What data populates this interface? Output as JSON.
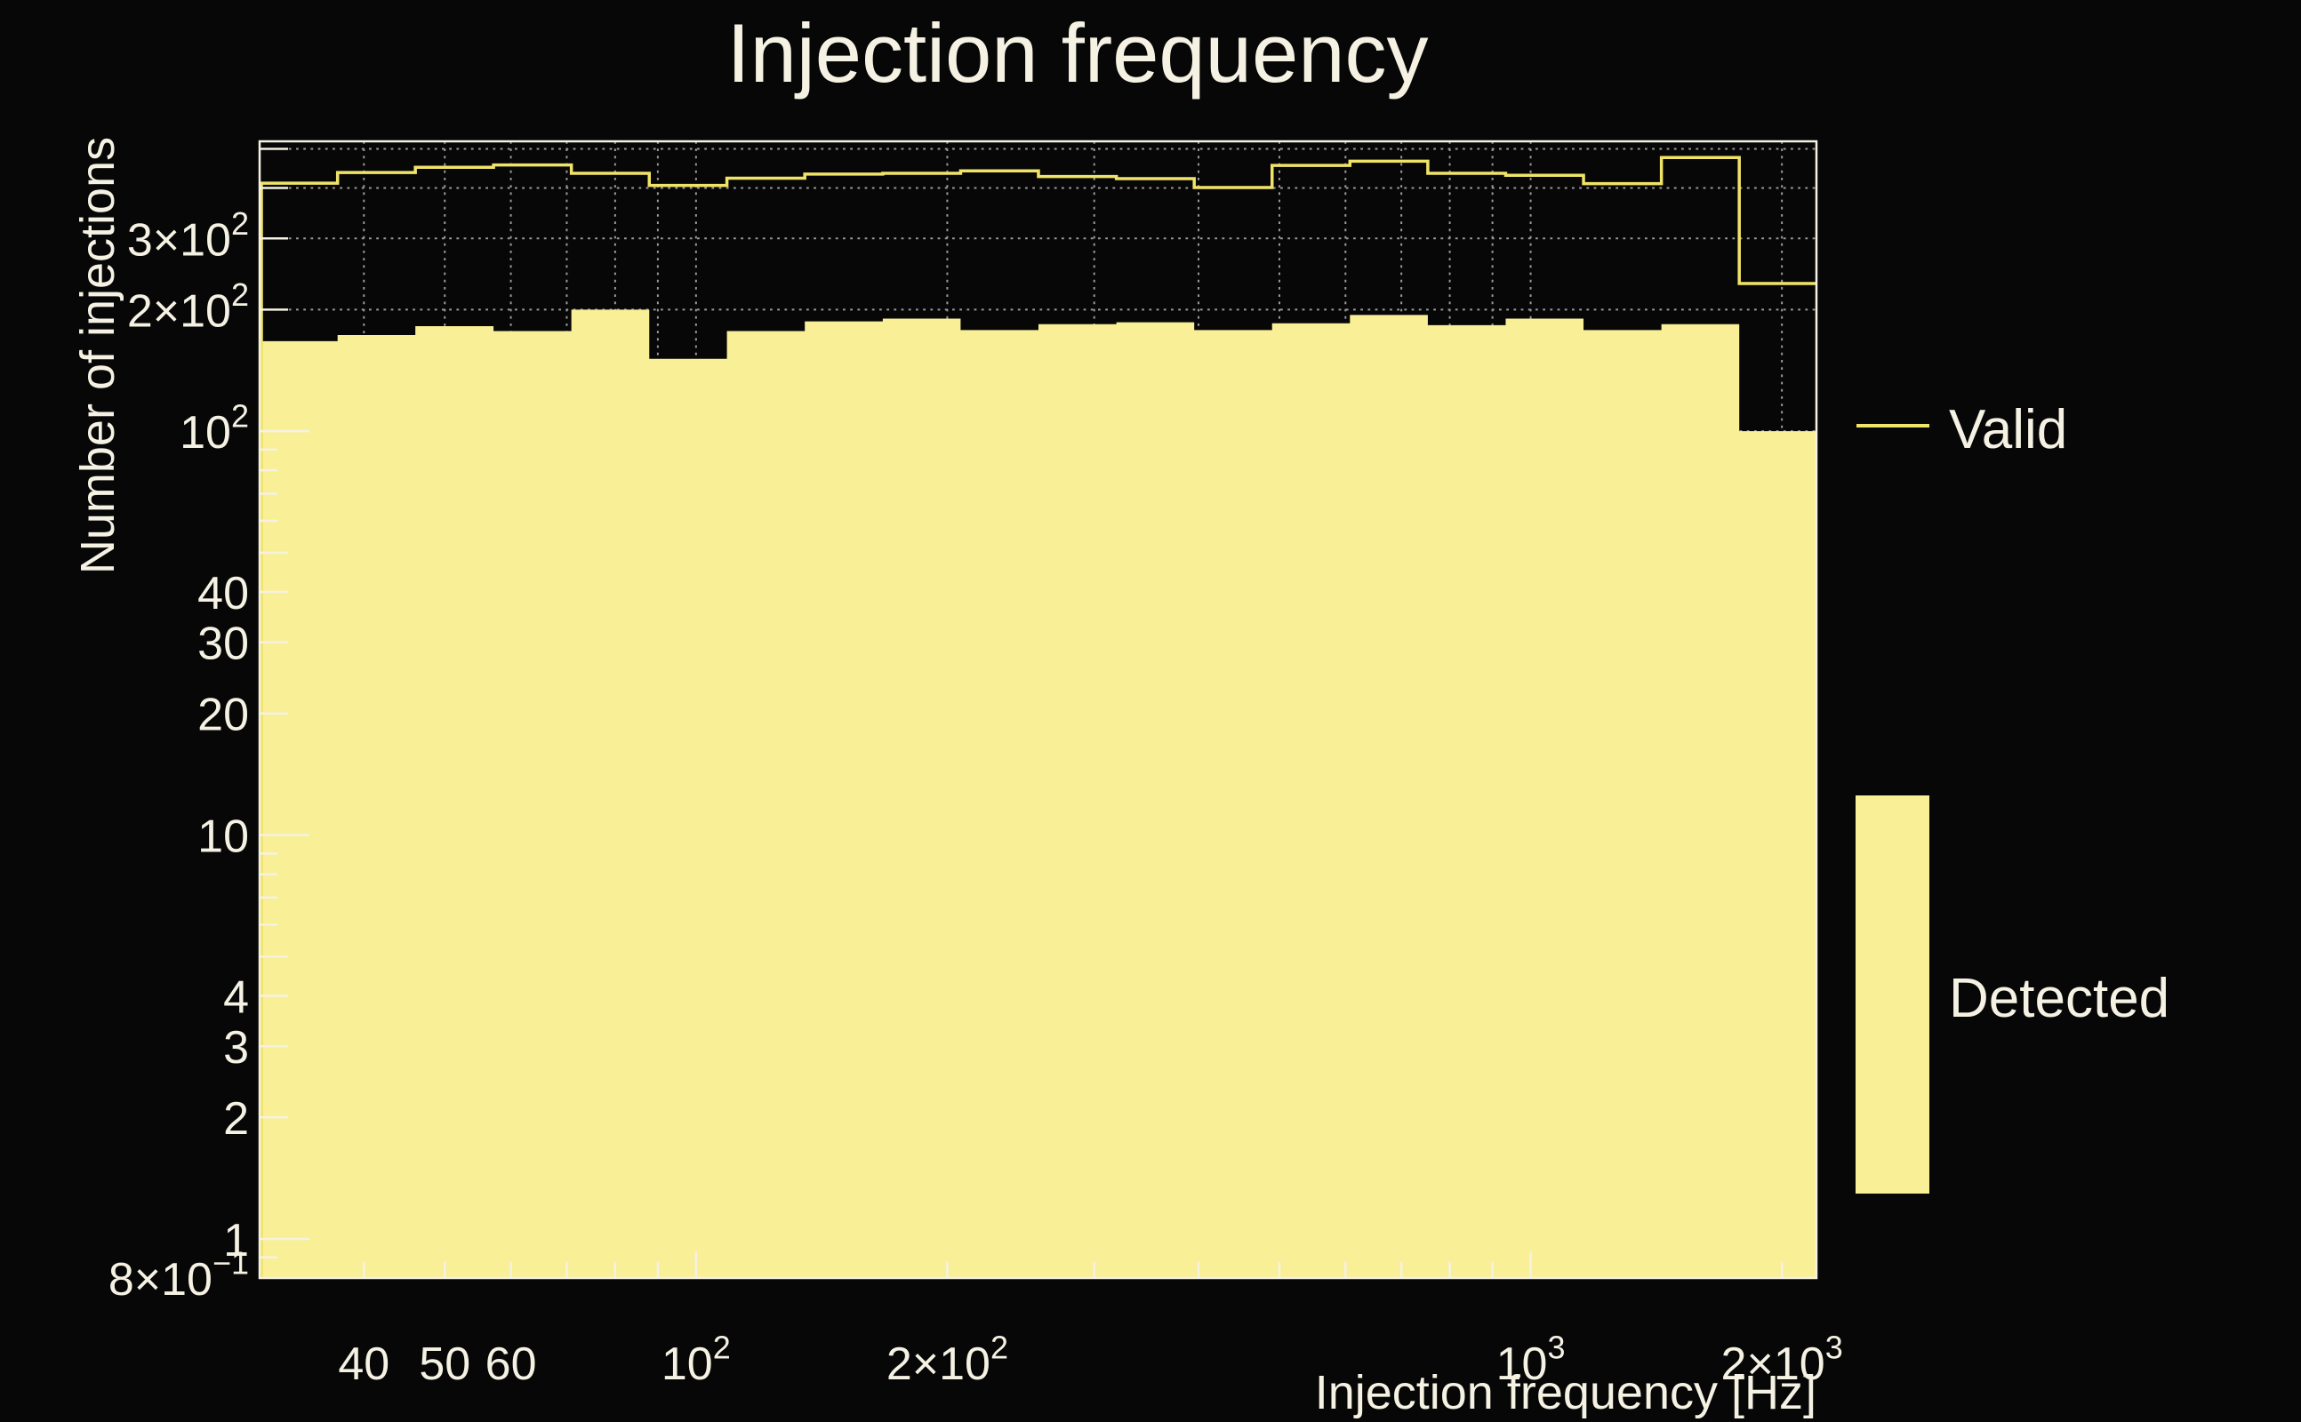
{
  "chart_data": {
    "type": "bar",
    "variant": "step-histogram",
    "title": "Injection frequency",
    "xlabel": "Injection frequency [Hz]",
    "ylabel": "Number of injections",
    "x_scale": "log",
    "y_scale": "log",
    "xlim": [
      30,
      2200
    ],
    "ylim": [
      0.8,
      522
    ],
    "grid": true,
    "legend_position": "right",
    "bin_edges_hz": [
      30.0,
      37.2,
      46.1,
      57.2,
      70.9,
      87.9,
      108.9,
      135.0,
      167.4,
      207.5,
      257.2,
      318.9,
      395.3,
      490.0,
      607.4,
      753.0,
      933.4,
      1157.1,
      1434.4,
      1778.1,
      2200.0
    ],
    "series": [
      {
        "name": "Valid",
        "style": "step-outline",
        "color": "#f0e468",
        "values": [
          411,
          437,
          450,
          456,
          435,
          406,
          423,
          433,
          435,
          441,
          427,
          422,
          401,
          455,
          466,
          435,
          430,
          410,
          476,
          232
        ]
      },
      {
        "name": "Detected",
        "style": "filled",
        "color": "#f9ef96",
        "values": [
          167,
          173,
          182,
          177,
          200,
          151,
          177,
          187,
          190,
          178,
          184,
          186,
          178,
          185,
          194,
          183,
          190,
          178,
          184,
          100
        ]
      }
    ],
    "x_ticks": {
      "major": [
        100,
        1000
      ],
      "minor": [
        40,
        50,
        60,
        70,
        80,
        90,
        200,
        300,
        400,
        500,
        600,
        700,
        800,
        900,
        2000
      ],
      "labels": [
        {
          "v": 40,
          "base": "40",
          "exp": ""
        },
        {
          "v": 50,
          "base": "50",
          "exp": ""
        },
        {
          "v": 60,
          "base": "60",
          "exp": ""
        },
        {
          "v": 100,
          "base": "10",
          "exp": "2"
        },
        {
          "v": 200,
          "base": "2×10",
          "exp": "2"
        },
        {
          "v": 1000,
          "base": "10",
          "exp": "3"
        },
        {
          "v": 2000,
          "base": "2×10",
          "exp": "3"
        }
      ]
    },
    "y_ticks": {
      "major": [
        1,
        10,
        100
      ],
      "mid": [
        2,
        3,
        4,
        5,
        20,
        30,
        40,
        50,
        200,
        300,
        400,
        500
      ],
      "small": [
        0.9,
        6,
        7,
        8,
        9,
        60,
        70,
        80,
        90
      ],
      "labels": [
        {
          "v": 300,
          "base": "3×10",
          "exp": "2"
        },
        {
          "v": 200,
          "base": "2×10",
          "exp": "2"
        },
        {
          "v": 100,
          "base": "10",
          "exp": "2"
        },
        {
          "v": 40,
          "base": "40",
          "exp": ""
        },
        {
          "v": 30,
          "base": "30",
          "exp": ""
        },
        {
          "v": 20,
          "base": "20",
          "exp": ""
        },
        {
          "v": 10,
          "base": "10",
          "exp": ""
        },
        {
          "v": 4,
          "base": "4",
          "exp": ""
        },
        {
          "v": 3,
          "base": "3",
          "exp": ""
        },
        {
          "v": 2,
          "base": "2",
          "exp": ""
        },
        {
          "v": 1,
          "base": "1",
          "exp": ""
        },
        {
          "v": 0.8,
          "base": "8×10",
          "exp": "−1"
        }
      ]
    },
    "gridline_values": {
      "x": [
        40,
        50,
        60,
        70,
        80,
        90,
        100,
        200,
        300,
        400,
        500,
        600,
        700,
        800,
        900,
        1000,
        2000
      ],
      "y": [
        1,
        2,
        3,
        4,
        5,
        6,
        7,
        8,
        9,
        10,
        20,
        30,
        40,
        50,
        60,
        70,
        80,
        90,
        100,
        200,
        300,
        400,
        500
      ]
    },
    "colors": {
      "background": "#070707",
      "frame": "#f5f2e4",
      "text": "#f5f2e4",
      "grid": "#9a9a9a",
      "valid_line": "#f0e468",
      "detected_fill": "#f9ef96"
    },
    "legend": {
      "items": [
        {
          "label": "Valid",
          "swatch": "line"
        },
        {
          "label": "Detected",
          "swatch": "box"
        }
      ]
    }
  }
}
